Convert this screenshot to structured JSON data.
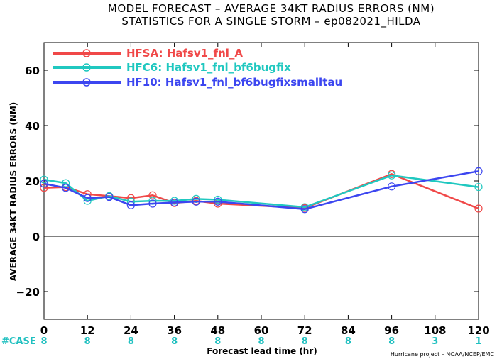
{
  "title_line1": "MODEL FORECAST – AVERAGE 34KT RADIUS ERRORS (NM)",
  "title_line2": "STATISTICS FOR A SINGLE STORM – ep082021_HILDA",
  "case_label": "#CASE",
  "credit": "Hurricane project – NOAA/NCEP/EMC",
  "colors": {
    "case": "#20c0c0",
    "zero_line": "#000000"
  },
  "chart_data": {
    "type": "line",
    "title": "MODEL FORECAST – AVERAGE 34KT RADIUS ERRORS (NM)",
    "subtitle": "STATISTICS FOR A SINGLE STORM – ep082021_HILDA",
    "xlabel": "Forecast lead time (hr)",
    "ylabel": "AVERAGE 34KT RADIUS ERRORS (NM)",
    "xlim": [
      0,
      120
    ],
    "ylim": [
      -30,
      70
    ],
    "xticks": [
      0,
      12,
      24,
      36,
      48,
      60,
      72,
      84,
      96,
      108,
      120
    ],
    "yticks": [
      -20,
      0,
      20,
      40,
      60
    ],
    "grid": false,
    "legend_position": "top-left",
    "case_counts": [
      8,
      8,
      8,
      8,
      8,
      8,
      8,
      8,
      8,
      3,
      1
    ],
    "series": [
      {
        "name": "HFSA: Hafsv1_fnl_A",
        "color": "#f04848",
        "x": [
          0,
          6,
          12,
          18,
          24,
          30,
          36,
          42,
          48,
          72,
          96,
          120
        ],
        "y": [
          17.5,
          17.8,
          15.2,
          14.5,
          13.8,
          14.8,
          12.0,
          12.8,
          11.8,
          10.2,
          22.5,
          10.0
        ]
      },
      {
        "name": "HFC6: Hafsv1_fnl_bf6bugfix",
        "color": "#20c8c0",
        "x": [
          0,
          6,
          12,
          18,
          24,
          30,
          36,
          42,
          48,
          72,
          96,
          120
        ],
        "y": [
          20.5,
          19.2,
          12.8,
          14.5,
          12.5,
          12.8,
          12.8,
          13.5,
          13.2,
          10.5,
          22.0,
          17.8
        ]
      },
      {
        "name": "HF10: Hafsv1_fnl_bf6bugfixsmalltau",
        "color": "#3c46f0",
        "x": [
          0,
          6,
          12,
          18,
          24,
          30,
          36,
          42,
          48,
          72,
          96,
          120
        ],
        "y": [
          19.0,
          17.5,
          13.8,
          14.2,
          11.2,
          11.8,
          12.2,
          12.5,
          12.5,
          9.8,
          18.0,
          23.5
        ]
      }
    ]
  }
}
